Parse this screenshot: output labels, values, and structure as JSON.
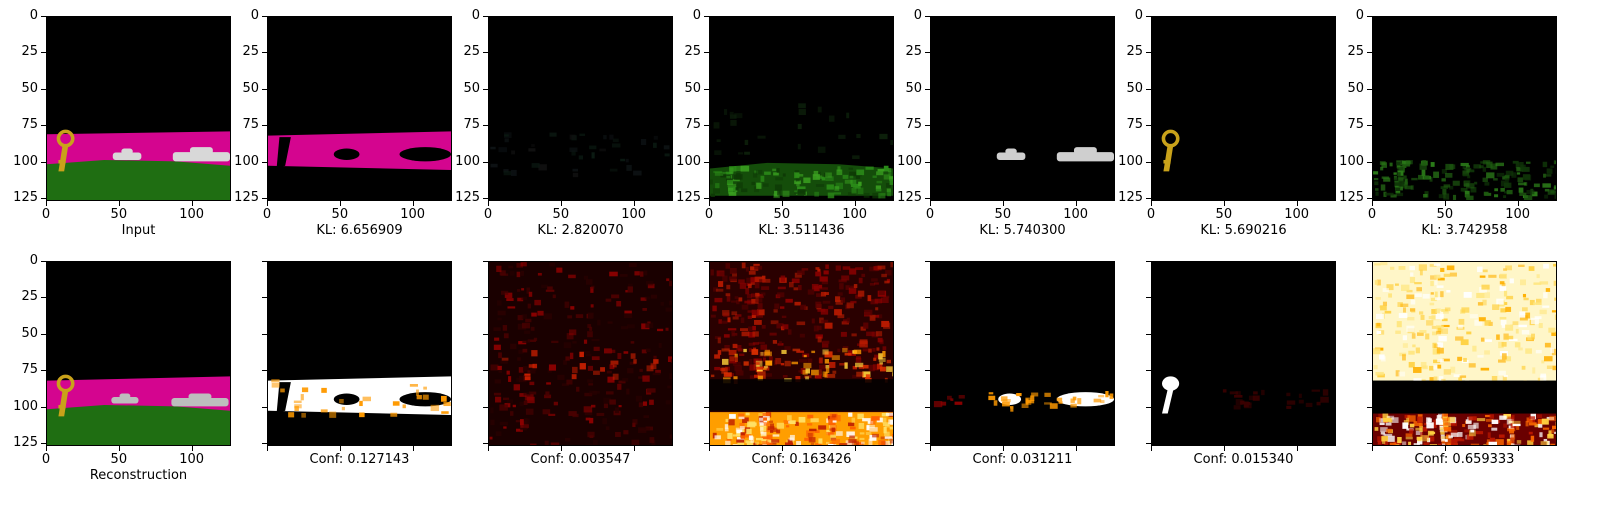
{
  "chart_data": {
    "type": "image-grid",
    "axis": {
      "xticks": [
        0,
        50,
        100
      ],
      "yticks": [
        0,
        25,
        50,
        75,
        100,
        125
      ],
      "xlim": [
        0,
        127
      ],
      "ylim": [
        127,
        0
      ]
    },
    "top_row": [
      {
        "label": "Input",
        "kind": "input"
      },
      {
        "label": "KL: 6.656909",
        "kind": "mask-magenta"
      },
      {
        "label": "KL: 2.820070",
        "kind": "dark"
      },
      {
        "label": "KL: 3.511436",
        "kind": "green"
      },
      {
        "label": "KL: 5.740300",
        "kind": "cars"
      },
      {
        "label": "KL: 5.690216",
        "kind": "key"
      },
      {
        "label": "KL: 3.742958",
        "kind": "green-faint"
      }
    ],
    "bottom_row": [
      {
        "label": "Reconstruction",
        "kind": "recon"
      },
      {
        "label": "Conf: 0.127143",
        "kind": "heat-magenta"
      },
      {
        "label": "Conf: 0.003547",
        "kind": "heat-dark"
      },
      {
        "label": "Conf: 0.163426",
        "kind": "heat-green"
      },
      {
        "label": "Conf: 0.031211",
        "kind": "heat-cars"
      },
      {
        "label": "Conf: 0.015340",
        "kind": "heat-key"
      },
      {
        "label": "Conf: 0.659333",
        "kind": "heat-sky"
      }
    ],
    "colors": {
      "magenta": "#d4058f",
      "green": "#1f6e12",
      "gold": "#c9a21a",
      "car": "#d8d8d8",
      "heat_hot": "#ffffff",
      "heat_mid": "#ff9a00",
      "heat_low": "#8a0000",
      "heat_base": "#1a0000"
    }
  }
}
